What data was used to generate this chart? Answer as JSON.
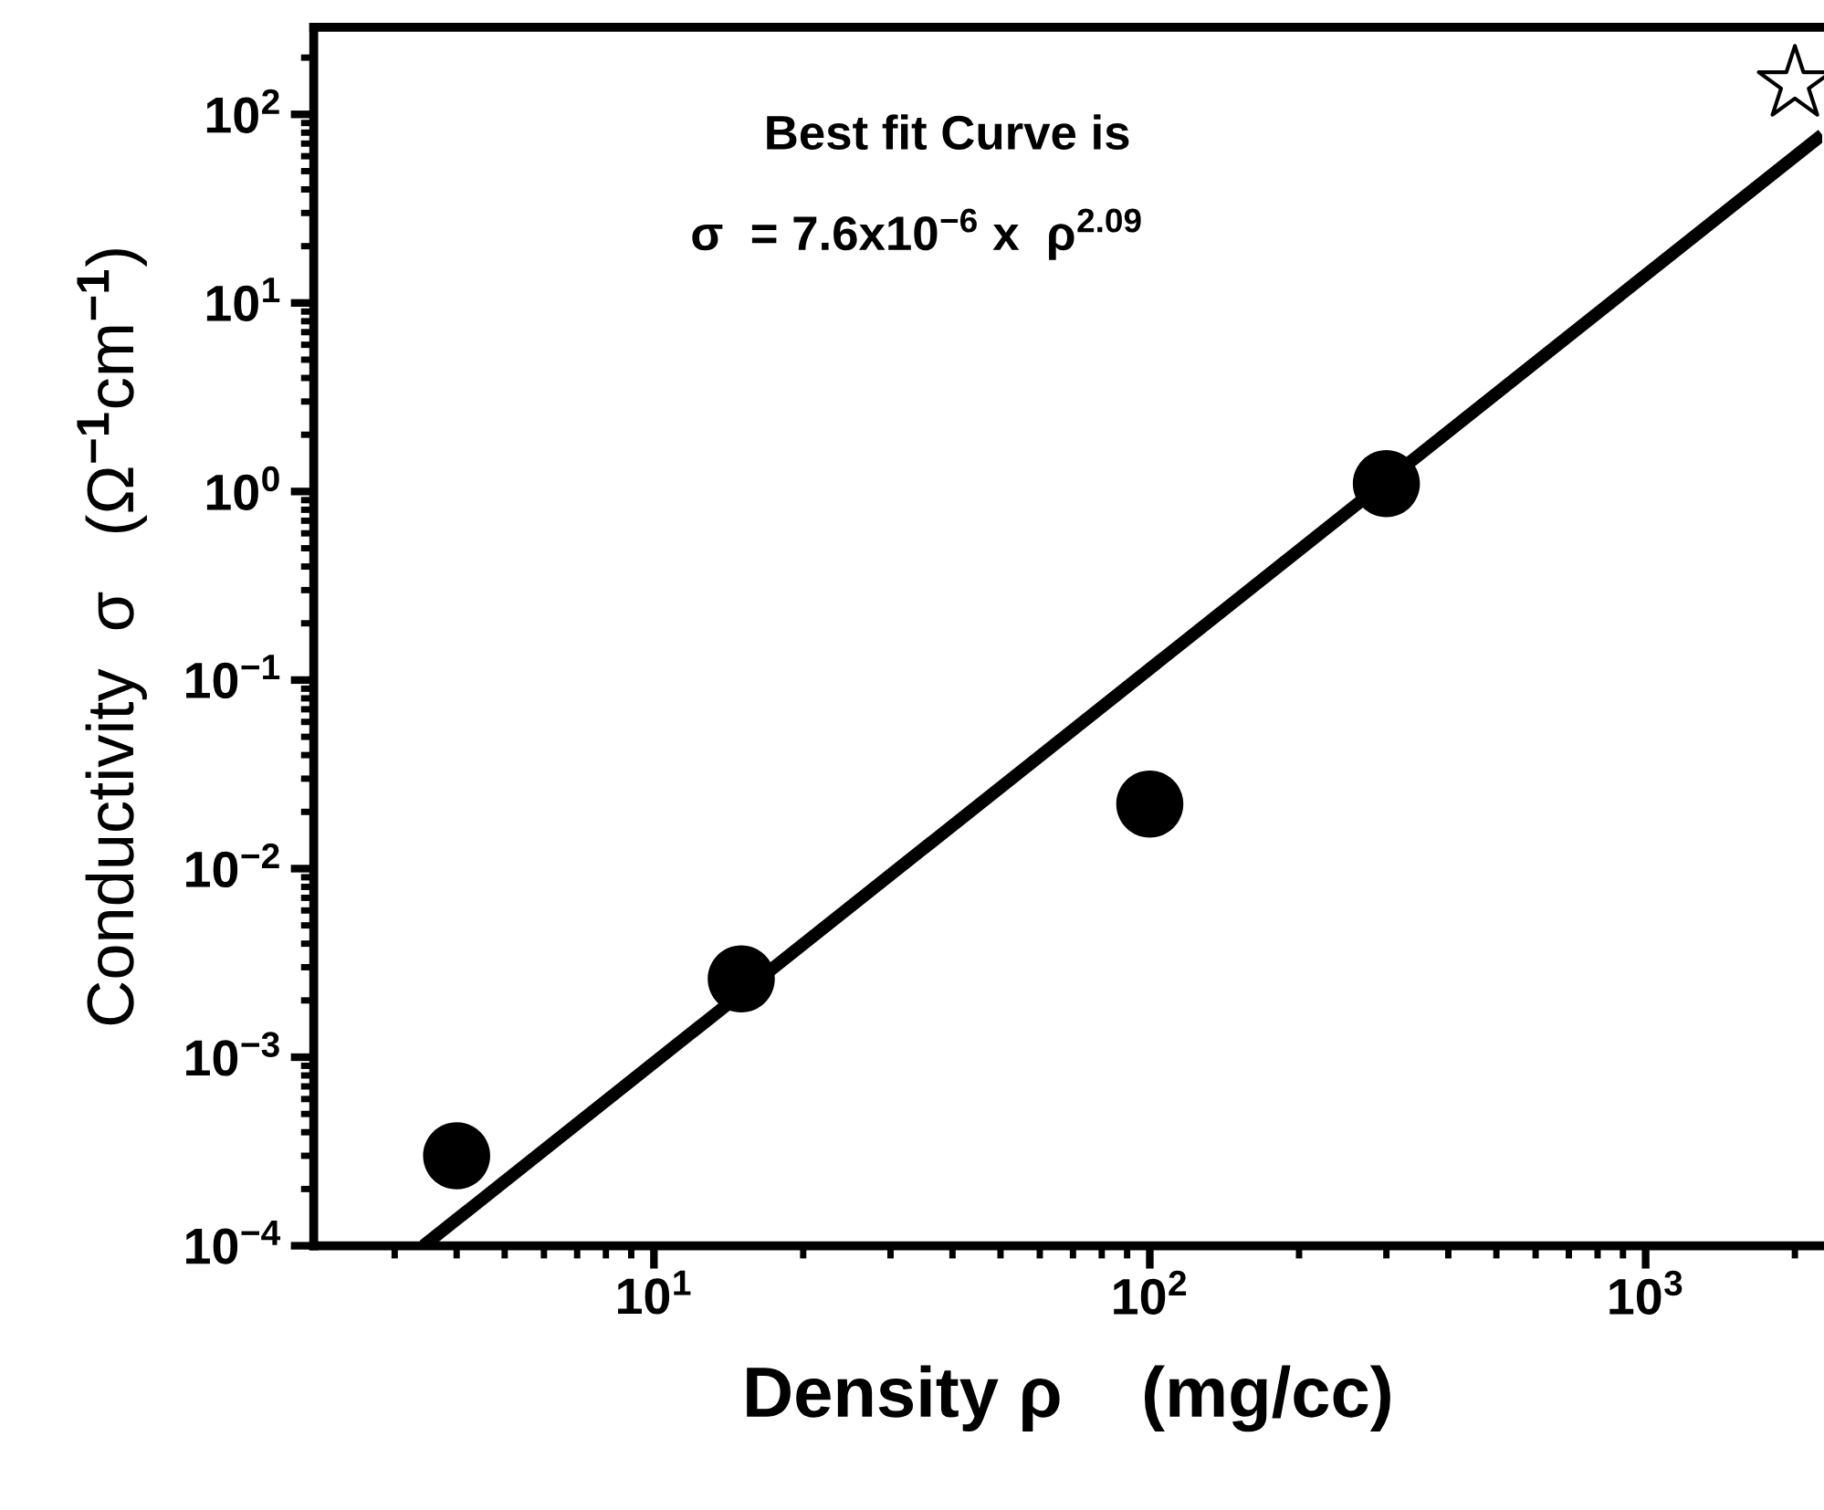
{
  "chart_data": {
    "type": "scatter",
    "xlabel": "Density ρ    (mg/cc)",
    "ylabel": "Conductivity  σ   (Ω$^{−1}$cm$^{−1}$)",
    "log": "xy",
    "xlim": [
      2.06,
      2270
    ],
    "ylim": [
      0.0001,
      290
    ],
    "xticks": [
      {
        "value": 10,
        "label": "10$^{1}$"
      },
      {
        "value": 100,
        "label": "10$^{2}$"
      },
      {
        "value": 1000,
        "label": "10$^{3}$"
      }
    ],
    "yticks": [
      {
        "value": 0.0001,
        "label": "10$^{−4}$"
      },
      {
        "value": 0.001,
        "label": "10$^{−3}$"
      },
      {
        "value": 0.01,
        "label": "10$^{−2}$"
      },
      {
        "value": 0.1,
        "label": "10$^{−1}$"
      },
      {
        "value": 1,
        "label": "10$^{0}$"
      },
      {
        "value": 10,
        "label": "10$^{1}$"
      },
      {
        "value": 100,
        "label": "10$^{2}$"
      }
    ],
    "grid": false,
    "legend": false,
    "series": [
      {
        "marker": "circle",
        "color": "#000000",
        "x": [
          4,
          15,
          100,
          300
        ],
        "values": [
          0.0003,
          0.0026,
          0.022,
          1.1
        ]
      },
      {
        "marker": "star",
        "color": "#ffffff",
        "x": [
          2000
        ],
        "values": [
          145
        ]
      },
      {
        "type": "line",
        "marker": "none",
        "line_style": "solid",
        "color": "#000000",
        "x": [
          3.43,
          2270
        ],
        "values": [
          0.0001,
          78
        ]
      }
    ],
    "annotations": [
      {
        "text": "Best fit Curve is"
      },
      {
        "text": "σ  = 7.6x10$^{−6}$ x  ρ$^{2.09}$"
      }
    ]
  }
}
